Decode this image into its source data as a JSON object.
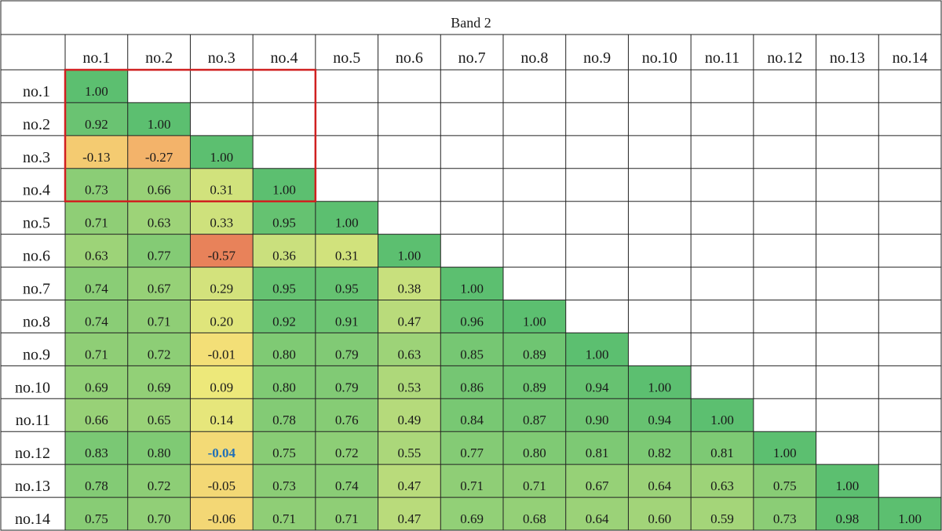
{
  "chart_data": {
    "type": "heatmap",
    "title": "Band 2",
    "row_labels": [
      "no.1",
      "no.2",
      "no.3",
      "no.4",
      "no.5",
      "no.6",
      "no.7",
      "no.8",
      "no.9",
      "no.10",
      "no.11",
      "no.12",
      "no.13",
      "no.14"
    ],
    "col_labels": [
      "no.1",
      "no.2",
      "no.3",
      "no.4",
      "no.5",
      "no.6",
      "no.7",
      "no.8",
      "no.9",
      "no.10",
      "no.11",
      "no.12",
      "no.13",
      "no.14"
    ],
    "values": [
      [
        "1.00"
      ],
      [
        "0.92",
        "1.00"
      ],
      [
        "-0.13",
        "-0.27",
        "1.00"
      ],
      [
        "0.73",
        "0.66",
        "0.31",
        "1.00"
      ],
      [
        "0.71",
        "0.63",
        "0.33",
        "0.95",
        "1.00"
      ],
      [
        "0.63",
        "0.77",
        "-0.57",
        "0.36",
        "0.31",
        "1.00"
      ],
      [
        "0.74",
        "0.67",
        "0.29",
        "0.95",
        "0.95",
        "0.38",
        "1.00"
      ],
      [
        "0.74",
        "0.71",
        "0.20",
        "0.92",
        "0.91",
        "0.47",
        "0.96",
        "1.00"
      ],
      [
        "0.71",
        "0.72",
        "-0.01",
        "0.80",
        "0.79",
        "0.63",
        "0.85",
        "0.89",
        "1.00"
      ],
      [
        "0.69",
        "0.69",
        "0.09",
        "0.80",
        "0.79",
        "0.53",
        "0.86",
        "0.89",
        "0.94",
        "1.00"
      ],
      [
        "0.66",
        "0.65",
        "0.14",
        "0.78",
        "0.76",
        "0.49",
        "0.84",
        "0.87",
        "0.90",
        "0.94",
        "1.00"
      ],
      [
        "0.83",
        "0.80",
        "-0.04",
        "0.75",
        "0.72",
        "0.55",
        "0.77",
        "0.80",
        "0.81",
        "0.82",
        "0.81",
        "1.00"
      ],
      [
        "0.78",
        "0.72",
        "-0.05",
        "0.73",
        "0.74",
        "0.47",
        "0.71",
        "0.71",
        "0.67",
        "0.64",
        "0.63",
        "0.75",
        "1.00"
      ],
      [
        "0.75",
        "0.70",
        "-0.06",
        "0.71",
        "0.71",
        "0.47",
        "0.69",
        "0.68",
        "0.64",
        "0.60",
        "0.59",
        "0.73",
        "0.98",
        "1.00"
      ]
    ],
    "highlighted_value": {
      "row": 11,
      "col": 2,
      "text_color": "#1f6fb8"
    },
    "highlight_box": {
      "row_start": 0,
      "row_end": 3,
      "col_start": 0,
      "col_end": 3,
      "color": "#d02020"
    },
    "color_scale": {
      "low": "#e8825a",
      "mid_low": "#f5bf6e",
      "mid": "#f2e97a",
      "mid_high": "#c5df7d",
      "high": "#5cbf70"
    },
    "grid": true
  }
}
